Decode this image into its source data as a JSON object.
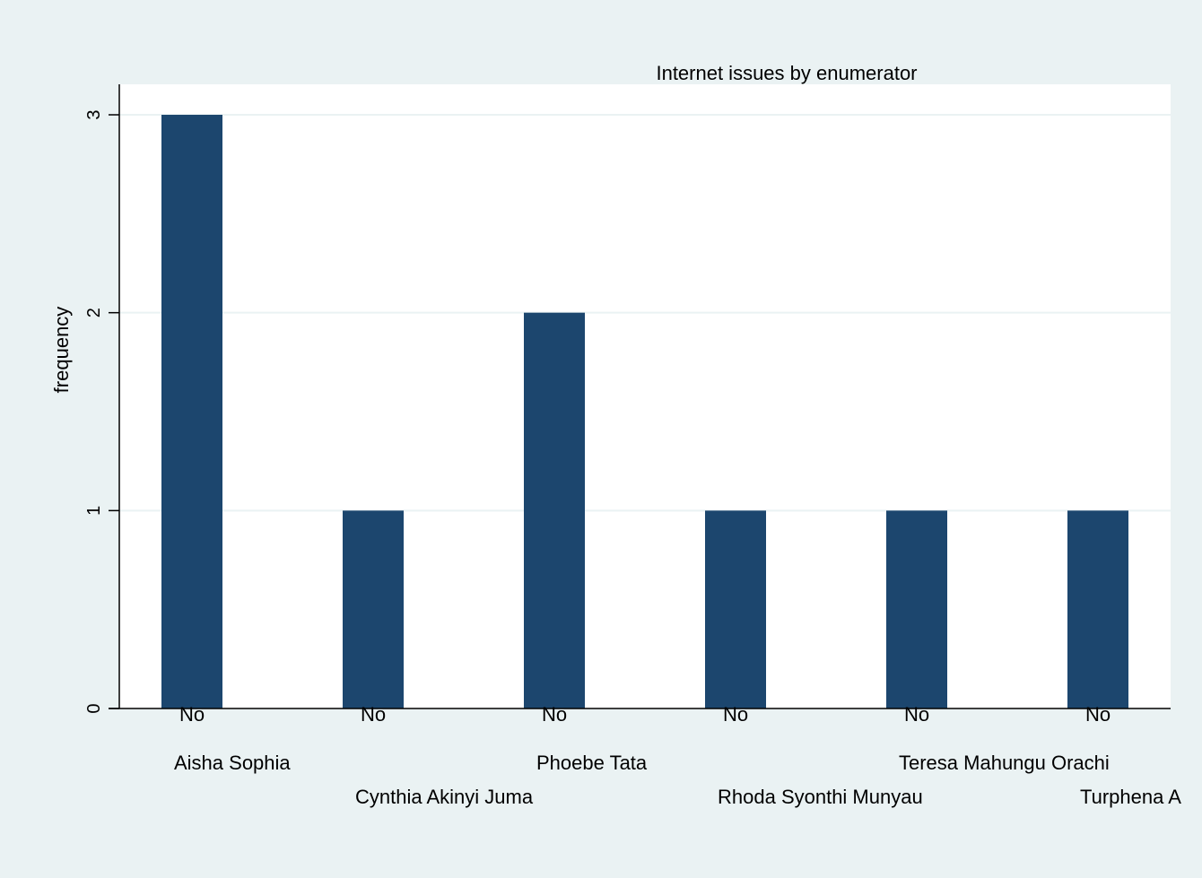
{
  "colors": {
    "background": "#eaf2f3",
    "plot_background": "#ffffff",
    "bar": "#1c466e",
    "grid": "#eaf2f3",
    "axis": "#000000"
  },
  "chart_data": {
    "type": "bar",
    "title": "Internet issues by enumerator",
    "ylabel": "frequency",
    "xlabel": "",
    "ylim": [
      0,
      3
    ],
    "yticks": [
      0,
      1,
      2,
      3
    ],
    "grid": true,
    "legend": "none",
    "bar_label": "No",
    "categories": [
      "Aisha Sophia",
      "Cynthia Akinyi Juma",
      "Phoebe Tata",
      "Rhoda Syonthi Munyau",
      "Teresa Mahungu Orachi",
      "Turphena A"
    ],
    "values": [
      3,
      1,
      2,
      1,
      1,
      1
    ]
  }
}
